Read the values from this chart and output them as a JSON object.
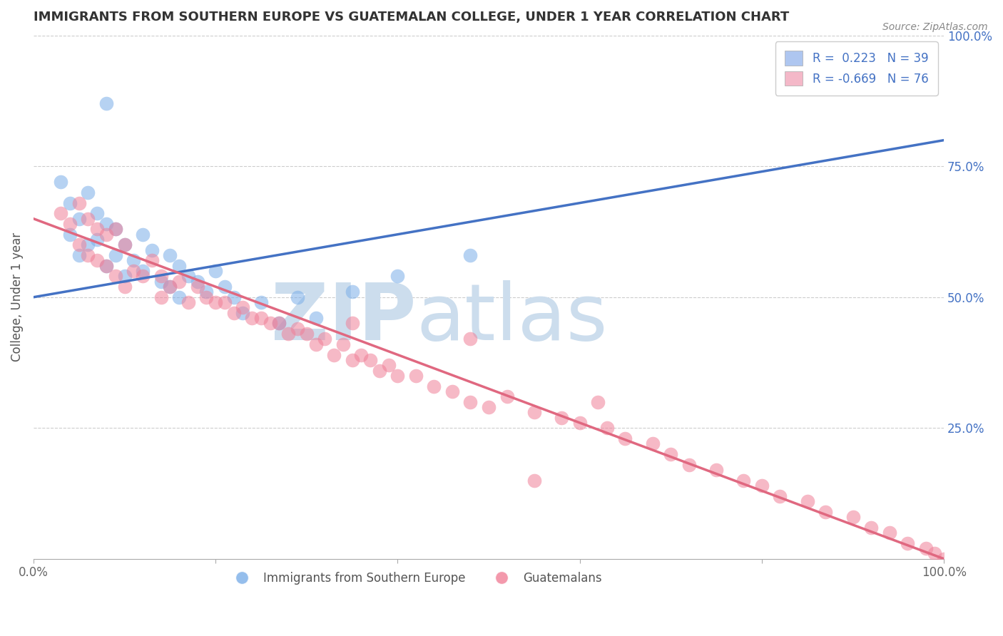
{
  "title": "IMMIGRANTS FROM SOUTHERN EUROPE VS GUATEMALAN COLLEGE, UNDER 1 YEAR CORRELATION CHART",
  "source": "Source: ZipAtlas.com",
  "ylabel": "College, Under 1 year",
  "xlim": [
    0,
    100
  ],
  "ylim": [
    0,
    100
  ],
  "xtick_pos": [
    0,
    20,
    40,
    60,
    80,
    100
  ],
  "xtick_labels": [
    "0.0%",
    "",
    "",
    "",
    "",
    "100.0%"
  ],
  "ytick_labels_right": [
    "100.0%",
    "75.0%",
    "50.0%",
    "25.0%"
  ],
  "ytick_positions_right": [
    100,
    75,
    50,
    25
  ],
  "legend_labels_bottom": [
    "Immigrants from Southern Europe",
    "Guatemalans"
  ],
  "blue_color": "#7baee8",
  "pink_color": "#f08098",
  "blue_line_color": "#4472c4",
  "pink_line_color": "#e06880",
  "background_color": "#ffffff",
  "watermark_color": "#ccdded",
  "blue_scatter_x": [
    3,
    4,
    4,
    5,
    5,
    6,
    6,
    7,
    7,
    8,
    8,
    9,
    9,
    10,
    10,
    11,
    12,
    12,
    13,
    14,
    15,
    15,
    16,
    16,
    17,
    18,
    19,
    20,
    21,
    22,
    23,
    25,
    27,
    29,
    31,
    35,
    40,
    48,
    8
  ],
  "blue_scatter_y": [
    72,
    68,
    62,
    65,
    58,
    70,
    60,
    66,
    61,
    64,
    56,
    63,
    58,
    60,
    54,
    57,
    55,
    62,
    59,
    53,
    58,
    52,
    56,
    50,
    54,
    53,
    51,
    55,
    52,
    50,
    47,
    49,
    45,
    50,
    46,
    51,
    54,
    58,
    87
  ],
  "pink_scatter_x": [
    3,
    4,
    5,
    5,
    6,
    6,
    7,
    7,
    8,
    8,
    9,
    9,
    10,
    10,
    11,
    12,
    13,
    14,
    14,
    15,
    16,
    17,
    18,
    19,
    20,
    21,
    22,
    23,
    24,
    25,
    26,
    27,
    28,
    29,
    30,
    31,
    32,
    33,
    34,
    35,
    36,
    37,
    38,
    39,
    40,
    42,
    44,
    46,
    48,
    50,
    52,
    55,
    58,
    60,
    63,
    65,
    68,
    70,
    72,
    75,
    78,
    80,
    82,
    85,
    87,
    90,
    92,
    94,
    96,
    98,
    99,
    100,
    35,
    48,
    55,
    62
  ],
  "pink_scatter_y": [
    66,
    64,
    68,
    60,
    65,
    58,
    63,
    57,
    62,
    56,
    63,
    54,
    60,
    52,
    55,
    54,
    57,
    54,
    50,
    52,
    53,
    49,
    52,
    50,
    49,
    49,
    47,
    48,
    46,
    46,
    45,
    45,
    43,
    44,
    43,
    41,
    42,
    39,
    41,
    38,
    39,
    38,
    36,
    37,
    35,
    35,
    33,
    32,
    30,
    29,
    31,
    28,
    27,
    26,
    25,
    23,
    22,
    20,
    18,
    17,
    15,
    14,
    12,
    11,
    9,
    8,
    6,
    5,
    3,
    2,
    1,
    0,
    45,
    42,
    15,
    30
  ],
  "blue_line_x0": 0,
  "blue_line_x1": 100,
  "blue_line_y0": 50,
  "blue_line_y1": 80,
  "pink_line_x0": 0,
  "pink_line_x1": 100,
  "pink_line_y0": 65,
  "pink_line_y1": 0
}
